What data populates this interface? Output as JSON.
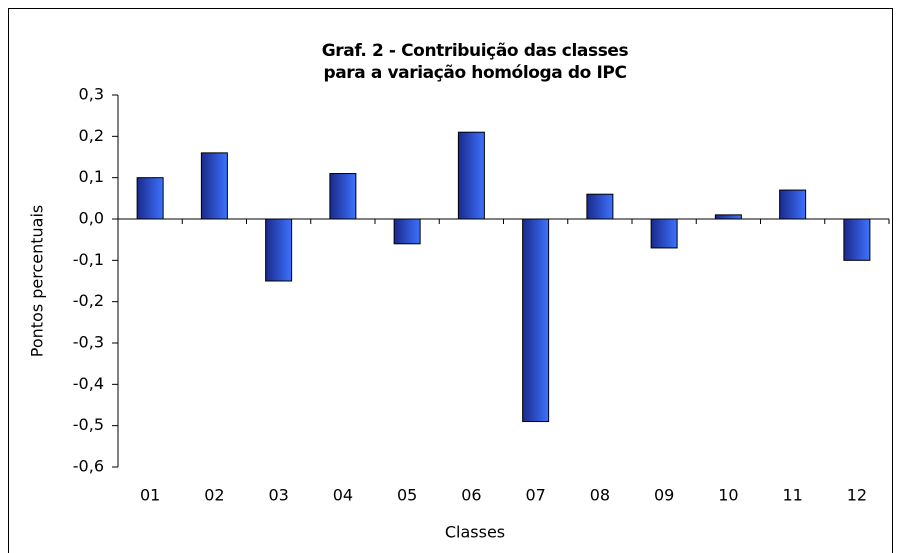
{
  "chart_data": {
    "type": "bar",
    "title": "Graf. 2 - Contribuição das classes para a variação homóloga do IPC",
    "x_label": "Classes",
    "y_label": "Pontos percentuais",
    "categories": [
      "01",
      "02",
      "03",
      "04",
      "05",
      "06",
      "07",
      "08",
      "09",
      "10",
      "11",
      "12"
    ],
    "values": [
      0.1,
      0.16,
      -0.15,
      0.11,
      -0.06,
      0.21,
      -0.49,
      0.06,
      -0.07,
      0.01,
      0.07,
      -0.1
    ],
    "color": "#3d72ff",
    "ylim": [
      -0.6,
      0.3
    ],
    "yticks": [
      {
        "value": -0.6,
        "label": "-0,6"
      },
      {
        "value": -0.5,
        "label": "-0,5"
      },
      {
        "value": -0.4,
        "label": "-0,4"
      },
      {
        "value": -0.3,
        "label": "-0,3"
      },
      {
        "value": -0.2,
        "label": "-0,2"
      },
      {
        "value": -0.1,
        "label": "-0,1"
      },
      {
        "value": 0,
        "label": "0,0"
      },
      {
        "value": 0.1,
        "label": "0,1"
      },
      {
        "value": 0.2,
        "label": "0,2"
      },
      {
        "value": 0.3,
        "label": "0,3"
      }
    ],
    "grid": false
  }
}
